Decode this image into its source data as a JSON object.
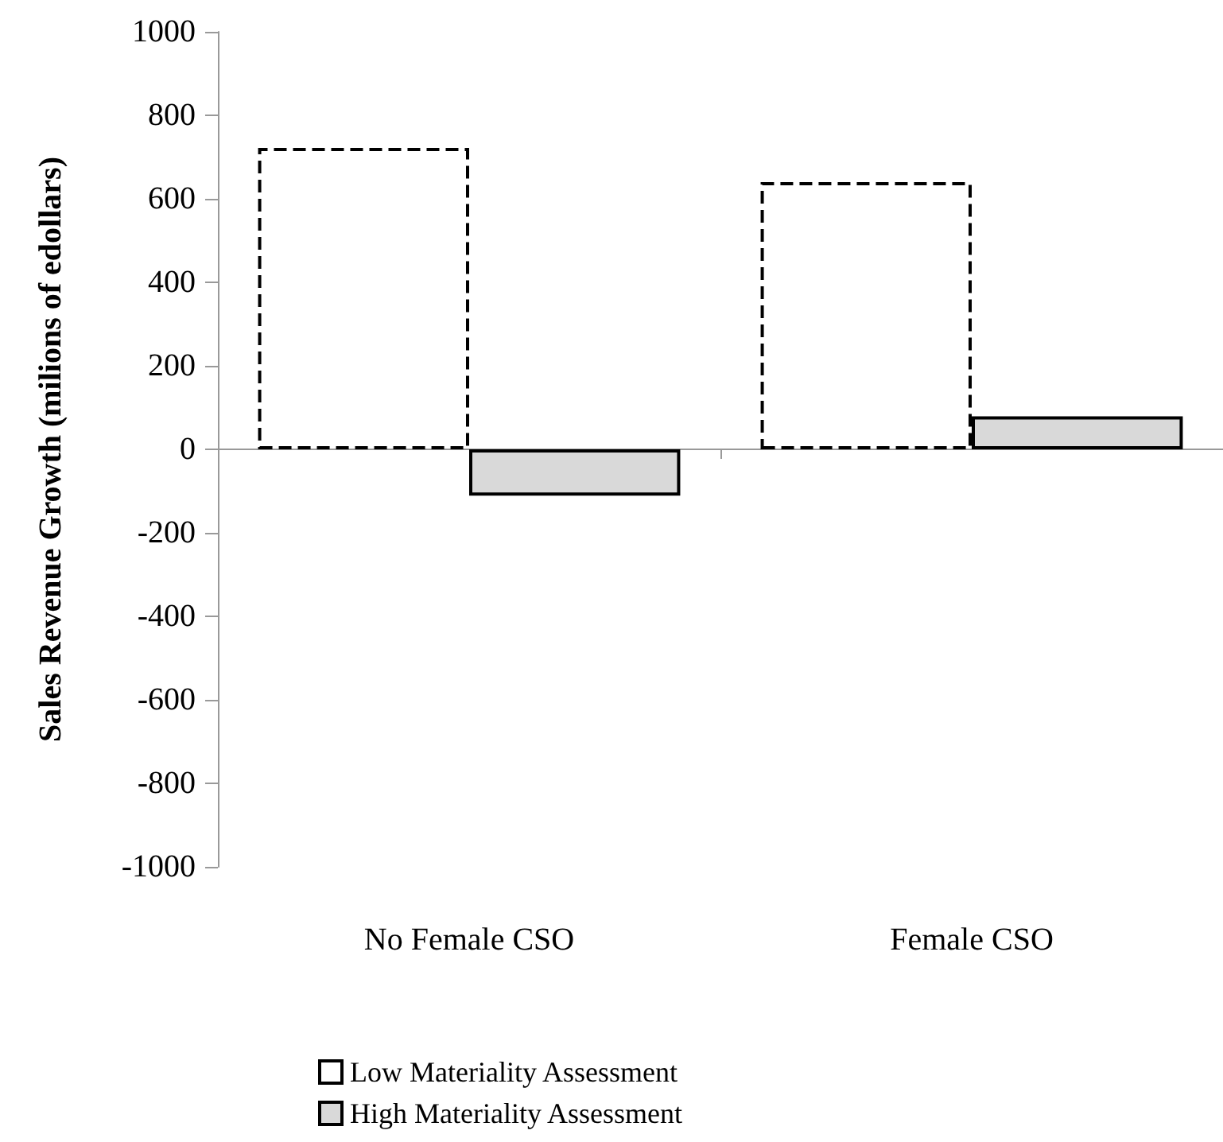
{
  "chart_data": {
    "type": "bar",
    "ylabel": "Sales Revenue Growth (milions of edollars)",
    "categories": [
      "No Female CSO",
      "Female CSO"
    ],
    "series": [
      {
        "name": "Low Materiality Assessment",
        "color": "#ffffff",
        "line_style": "dashed",
        "values": [
          722,
          640
        ]
      },
      {
        "name": "High Materiality Assessment",
        "color": "#d9d9d9",
        "line_style": "solid",
        "values": [
          -111,
          79
        ]
      }
    ],
    "ylim": [
      -1000,
      1000
    ],
    "yticks": [
      -1000,
      -800,
      -600,
      -400,
      -200,
      0,
      200,
      400,
      600,
      800,
      1000
    ],
    "legend": "bottom"
  }
}
